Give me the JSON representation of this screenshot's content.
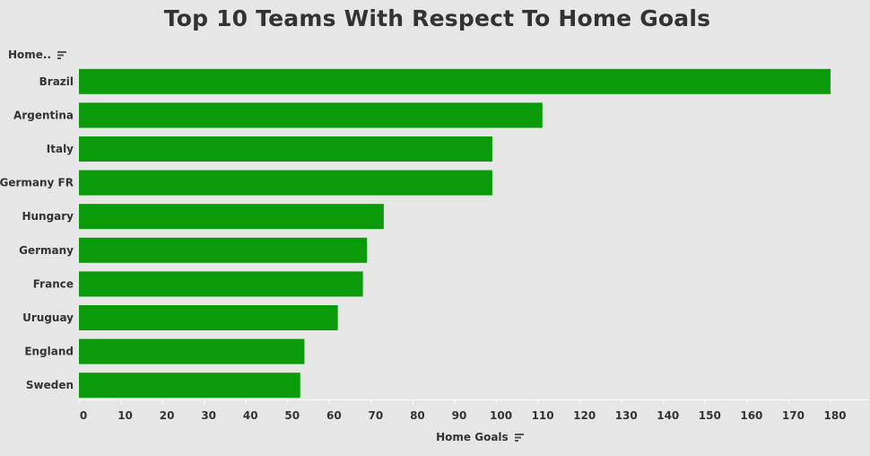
{
  "title": "Top 10 Teams With Respect To Home Goals",
  "y_header": "Home..",
  "x_title": "Home Goals",
  "icons": {
    "sort": "sort-descending-icon"
  },
  "colors": {
    "bar": "#0a9a0a",
    "background": "#e6e6e6",
    "text": "#333333",
    "axis": "#ffffff"
  },
  "chart_data": {
    "type": "bar",
    "orientation": "horizontal",
    "categories": [
      "Brazil",
      "Argentina",
      "Italy",
      "Germany FR",
      "Hungary",
      "Germany",
      "France",
      "Uruguay",
      "England",
      "Sweden"
    ],
    "values": [
      180,
      111,
      99,
      99,
      73,
      69,
      68,
      62,
      54,
      53
    ],
    "xlabel": "Home Goals",
    "ylabel": "Home..",
    "xlim": [
      0,
      180
    ],
    "xticks": [
      0,
      10,
      20,
      30,
      40,
      50,
      60,
      70,
      80,
      90,
      100,
      110,
      120,
      130,
      140,
      150,
      160,
      170,
      180
    ],
    "grid": false
  }
}
